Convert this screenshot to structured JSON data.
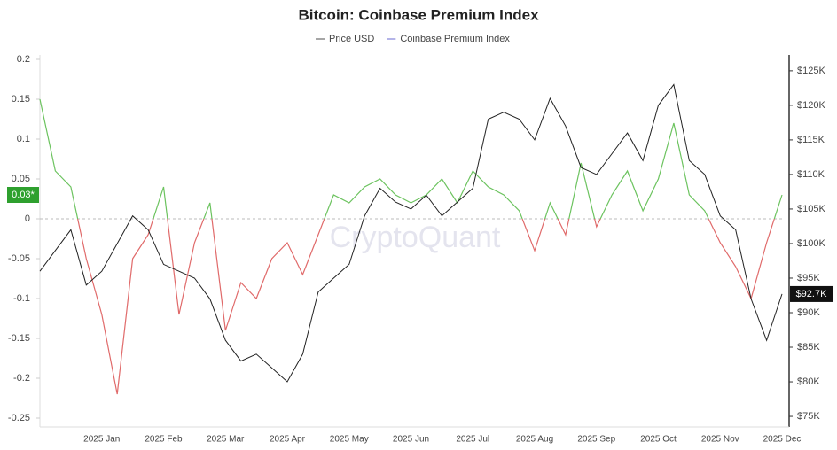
{
  "chart_data": {
    "type": "line",
    "title": "Bitcoin: Coinbase Premium Index",
    "watermark": "CryptoQuant",
    "categories": [
      null,
      null,
      null,
      null,
      "2025 Jan",
      null,
      null,
      null,
      "2025 Feb",
      null,
      null,
      null,
      "2025 Mar",
      null,
      null,
      null,
      "2025 Apr",
      null,
      null,
      null,
      "2025 May",
      null,
      null,
      null,
      "2025 Jun",
      null,
      null,
      null,
      "2025 Jul",
      null,
      null,
      null,
      "2025 Aug",
      null,
      null,
      null,
      "2025 Sep",
      null,
      null,
      null,
      "2025 Oct",
      null,
      null,
      null,
      "2025 Nov",
      null,
      null,
      null,
      "2025 Dec"
    ],
    "series": [
      {
        "name": "Price USD",
        "color": "#222222",
        "legend_color": "#888888",
        "axis": "y2",
        "end_label": "$92.7K",
        "values": [
          96000,
          99000,
          102000,
          94000,
          96000,
          100000,
          104000,
          102000,
          97000,
          96000,
          95000,
          92000,
          86000,
          83000,
          84000,
          82000,
          80000,
          84000,
          93000,
          95000,
          97000,
          104000,
          108000,
          106000,
          105000,
          107000,
          104000,
          106000,
          108000,
          118000,
          119000,
          118000,
          115000,
          121000,
          117000,
          111000,
          110000,
          113000,
          116000,
          112000,
          120000,
          123000,
          112000,
          110000,
          104000,
          102000,
          92000,
          86000,
          92700
        ]
      },
      {
        "name": "Coinbase Premium Index",
        "color": "#6cc35f",
        "negative_color": "#e06a6a",
        "legend_color": "#9b9be0",
        "end_label": "0.03*",
        "values": [
          0.15,
          0.06,
          0.04,
          -0.05,
          -0.12,
          -0.22,
          -0.05,
          -0.02,
          0.04,
          -0.12,
          -0.03,
          0.02,
          -0.14,
          -0.08,
          -0.1,
          -0.05,
          -0.03,
          -0.07,
          -0.02,
          0.03,
          0.02,
          0.04,
          0.05,
          0.03,
          0.02,
          0.03,
          0.05,
          0.02,
          0.06,
          0.04,
          0.03,
          0.01,
          -0.04,
          0.02,
          -0.02,
          0.07,
          -0.01,
          0.03,
          0.06,
          0.01,
          0.05,
          0.12,
          0.03,
          0.01,
          -0.03,
          -0.06,
          -0.1,
          -0.03,
          0.03
        ]
      }
    ],
    "ylim": [
      -0.25,
      0.2
    ],
    "yticks": [
      0.2,
      0.15,
      0.1,
      0.05,
      0,
      -0.05,
      -0.1,
      -0.15,
      -0.2,
      -0.25
    ],
    "y2lim": [
      74750,
      126650
    ],
    "y2ticks": [
      {
        "value": 125000,
        "label": "$125K"
      },
      {
        "value": 120000,
        "label": "$120K"
      },
      {
        "value": 115000,
        "label": "$115K"
      },
      {
        "value": 110000,
        "label": "$110K"
      },
      {
        "value": 105000,
        "label": "$105K"
      },
      {
        "value": 100000,
        "label": "$100K"
      },
      {
        "value": 95000,
        "label": "$95K"
      },
      {
        "value": 90000,
        "label": "$90K"
      },
      {
        "value": 85000,
        "label": "$85K"
      },
      {
        "value": 80000,
        "label": "$80K"
      },
      {
        "value": 75000,
        "label": "$75K"
      }
    ],
    "zero_line": true
  }
}
